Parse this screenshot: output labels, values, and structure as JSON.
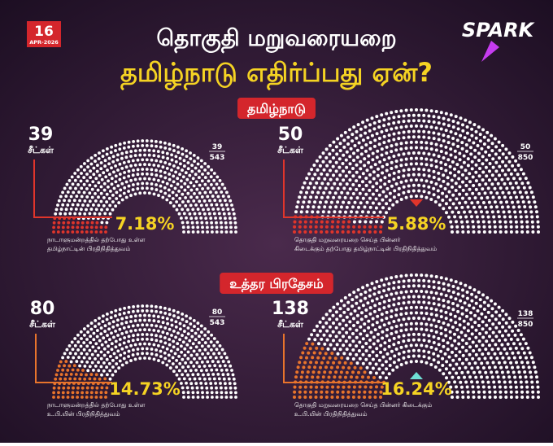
{
  "badge": {
    "day": 16,
    "date": "APR-2026"
  },
  "logo": "SPARK",
  "title": {
    "line1": "தொகுதி மறுவரையறை",
    "line2": "தமிழ்நாடு எதிர்ப்பது ஏன்?"
  },
  "sections": [
    {
      "label": "தமிழ்நாடு",
      "color": "#e0352b",
      "panels": [
        {
          "seats": 39,
          "total": 543,
          "unit": "சீட்கள்",
          "percent": "7.18%",
          "caption": [
            "நாடாளுமன்றத்தில் தற்போது உள்ள",
            "தமிழ்நாட்டின் பிரதிநிதித்துவம்"
          ]
        },
        {
          "seats": 50,
          "total": 850,
          "unit": "சீட்கள்",
          "percent": "5.88%",
          "caption": [
            "தொகுதி மறுவரையறை செய்த பின்னர்",
            "கிடைக்கும் தற்போது தமிழ்நாட்டின் பிரதிநிதித்துவம்"
          ]
        }
      ]
    },
    {
      "label": "உத்தர பிரதேசம்",
      "color": "#e8742c",
      "panels": [
        {
          "seats": 80,
          "total": 543,
          "unit": "சீட்கள்",
          "percent": "14.73%",
          "caption": [
            "நாடாளுமன்றத்தில் தற்போது உள்ள",
            "உ.பி.யின் பிரதிநிதித்துவம்"
          ]
        },
        {
          "seats": 138,
          "total": 850,
          "unit": "சீட்கள்",
          "percent": "16.24%",
          "caption": [
            "தொகுதி மறுவரையறை செய்த பின்னர் கிடைக்கும்",
            "உ.பி.யின் பிரதிநிதித்துவம்"
          ]
        }
      ]
    }
  ]
}
